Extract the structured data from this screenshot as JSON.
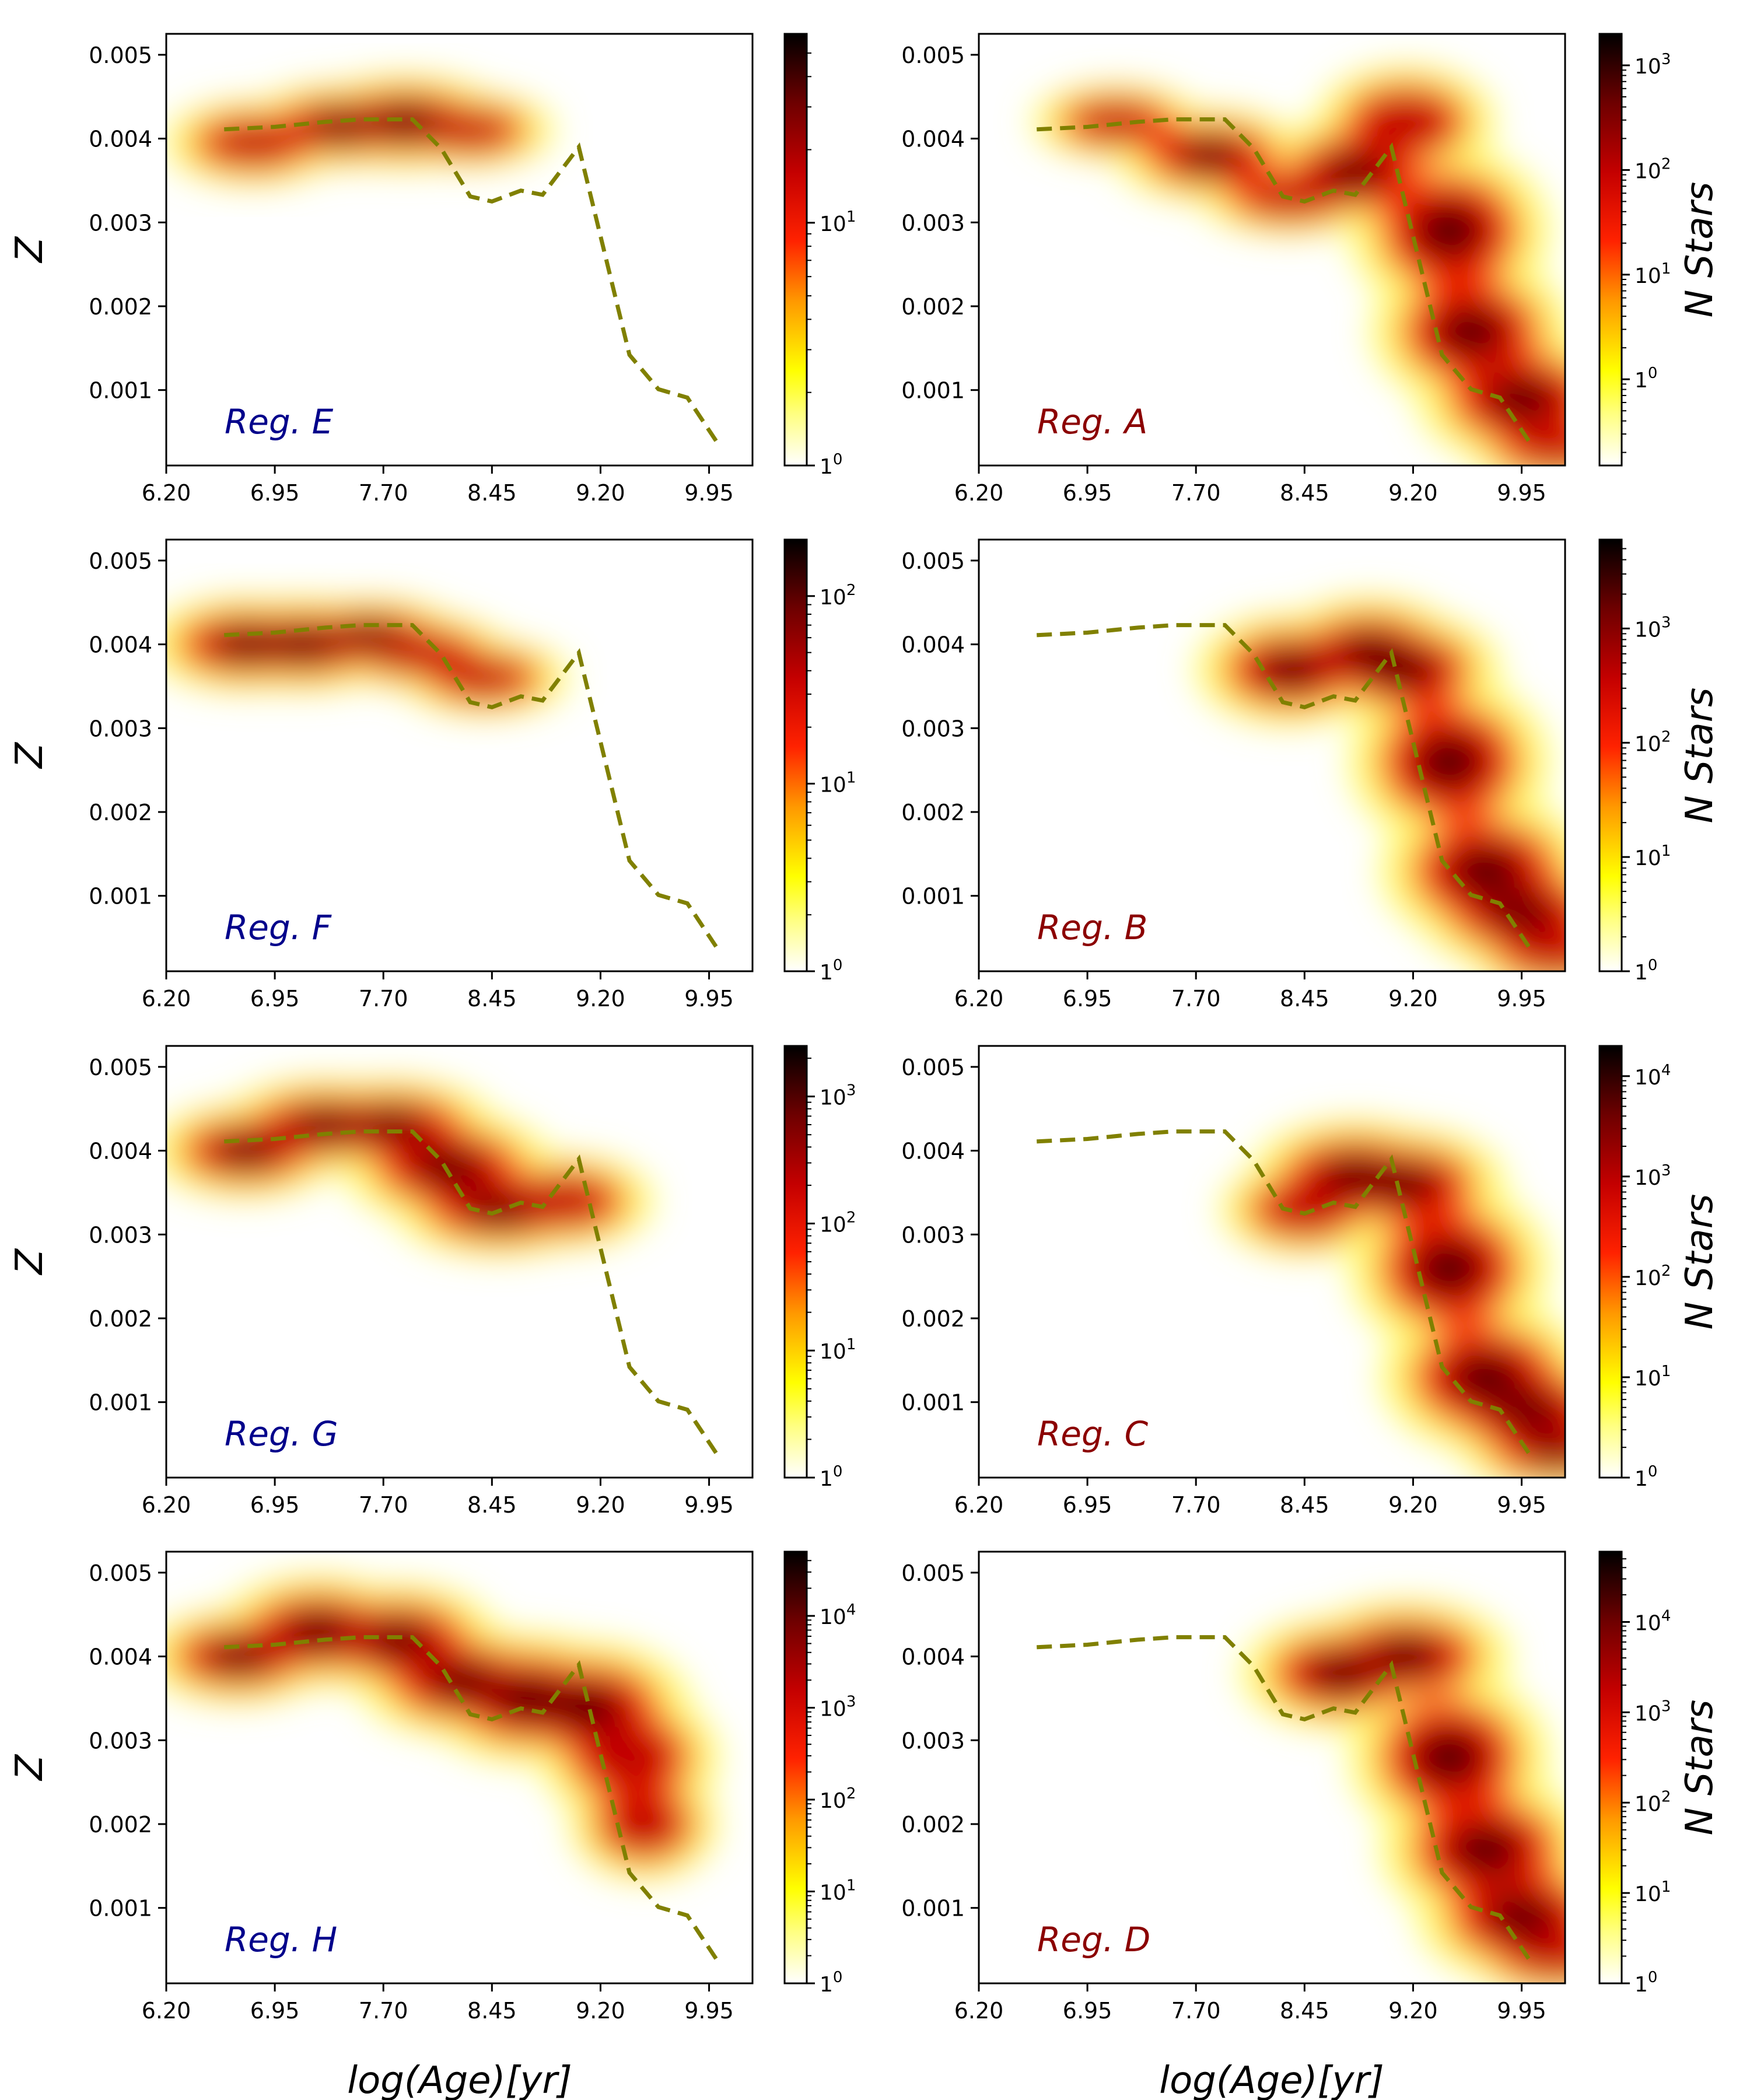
{
  "figure": {
    "common": {
      "x_ticks": [
        "6.20",
        "6.95",
        "7.70",
        "8.45",
        "9.20",
        "9.95"
      ],
      "y_ticks": [
        "0.001",
        "0.002",
        "0.003",
        "0.004",
        "0.005"
      ],
      "xlim": [
        6.2,
        10.25
      ],
      "ylim": [
        0.0001,
        0.00525
      ],
      "xlabel": "log(Age)[yr]",
      "ylabel": "Z",
      "colorbar_label": "N Stars",
      "line_color": "#808000",
      "label_color_left": "#00008b",
      "label_color_right": "#8b0000"
    }
  },
  "chart_data": [
    {
      "type": "heatmap",
      "region_label": "Reg. E",
      "colorbar_ticks": [
        {
          "label": "1",
          "exp": "0",
          "value": 1
        },
        {
          "label": "10",
          "exp": "1",
          "value": 10
        }
      ],
      "colorbar_range": [
        1,
        60
      ],
      "amr_line": {
        "x": [
          6.6,
          6.95,
          7.3,
          7.55,
          7.9,
          8.1,
          8.3,
          8.45,
          8.65,
          8.8,
          9.05,
          9.4,
          9.6,
          9.8,
          10.0
        ],
        "y": [
          0.00411,
          0.00414,
          0.0042,
          0.00423,
          0.00423,
          0.00388,
          0.00331,
          0.00325,
          0.00338,
          0.00333,
          0.0039,
          0.00142,
          0.00101,
          0.00091,
          0.00039
        ]
      }
    },
    {
      "type": "heatmap",
      "region_label": "Reg. A",
      "colorbar_ticks": [
        {
          "label": "1",
          "exp": "0",
          "value": 1
        },
        {
          "label": "10",
          "exp": "1",
          "value": 10
        },
        {
          "label": "10",
          "exp": "2",
          "value": 100
        },
        {
          "label": "10",
          "exp": "3",
          "value": 1000
        }
      ],
      "colorbar_range": [
        0.15,
        2000
      ],
      "amr_line": {
        "x": [
          6.6,
          6.95,
          7.3,
          7.55,
          7.9,
          8.1,
          8.3,
          8.45,
          8.65,
          8.8,
          9.05,
          9.4,
          9.6,
          9.8,
          10.0
        ],
        "y": [
          0.00411,
          0.00414,
          0.0042,
          0.00423,
          0.00423,
          0.00388,
          0.00331,
          0.00325,
          0.00338,
          0.00333,
          0.0039,
          0.00142,
          0.00101,
          0.00091,
          0.00039
        ]
      }
    },
    {
      "type": "heatmap",
      "region_label": "Reg. F",
      "colorbar_ticks": [
        {
          "label": "1",
          "exp": "0",
          "value": 1
        },
        {
          "label": "10",
          "exp": "1",
          "value": 10
        },
        {
          "label": "10",
          "exp": "2",
          "value": 100
        }
      ],
      "colorbar_range": [
        1,
        200
      ],
      "amr_line": {
        "x": [
          6.6,
          6.95,
          7.3,
          7.55,
          7.9,
          8.1,
          8.3,
          8.45,
          8.65,
          8.8,
          9.05,
          9.4,
          9.6,
          9.8,
          10.0
        ],
        "y": [
          0.00411,
          0.00414,
          0.0042,
          0.00423,
          0.00423,
          0.00388,
          0.00331,
          0.00325,
          0.00338,
          0.00333,
          0.0039,
          0.00142,
          0.00101,
          0.00091,
          0.00039
        ]
      }
    },
    {
      "type": "heatmap",
      "region_label": "Reg. B",
      "colorbar_ticks": [
        {
          "label": "1",
          "exp": "0",
          "value": 1
        },
        {
          "label": "10",
          "exp": "1",
          "value": 10
        },
        {
          "label": "10",
          "exp": "2",
          "value": 100
        },
        {
          "label": "10",
          "exp": "3",
          "value": 1000
        }
      ],
      "colorbar_range": [
        1,
        6000
      ],
      "amr_line": {
        "x": [
          6.6,
          6.95,
          7.3,
          7.55,
          7.9,
          8.1,
          8.3,
          8.45,
          8.65,
          8.8,
          9.05,
          9.4,
          9.6,
          9.8,
          10.0
        ],
        "y": [
          0.00411,
          0.00414,
          0.0042,
          0.00423,
          0.00423,
          0.00388,
          0.00331,
          0.00325,
          0.00338,
          0.00333,
          0.0039,
          0.00142,
          0.00101,
          0.00091,
          0.00039
        ]
      }
    },
    {
      "type": "heatmap",
      "region_label": "Reg. G",
      "colorbar_ticks": [
        {
          "label": "1",
          "exp": "0",
          "value": 1
        },
        {
          "label": "10",
          "exp": "1",
          "value": 10
        },
        {
          "label": "10",
          "exp": "2",
          "value": 100
        },
        {
          "label": "10",
          "exp": "3",
          "value": 1000
        }
      ],
      "colorbar_range": [
        1,
        2500
      ],
      "amr_line": {
        "x": [
          6.6,
          6.95,
          7.3,
          7.55,
          7.9,
          8.1,
          8.3,
          8.45,
          8.65,
          8.8,
          9.05,
          9.4,
          9.6,
          9.8,
          10.0
        ],
        "y": [
          0.00411,
          0.00414,
          0.0042,
          0.00423,
          0.00423,
          0.00388,
          0.00331,
          0.00325,
          0.00338,
          0.00333,
          0.0039,
          0.00142,
          0.00101,
          0.00091,
          0.00039
        ]
      }
    },
    {
      "type": "heatmap",
      "region_label": "Reg. C",
      "colorbar_ticks": [
        {
          "label": "1",
          "exp": "0",
          "value": 1
        },
        {
          "label": "10",
          "exp": "1",
          "value": 10
        },
        {
          "label": "10",
          "exp": "2",
          "value": 100
        },
        {
          "label": "10",
          "exp": "3",
          "value": 1000
        },
        {
          "label": "10",
          "exp": "4",
          "value": 10000
        }
      ],
      "colorbar_range": [
        1,
        20000
      ],
      "amr_line": {
        "x": [
          6.6,
          6.95,
          7.3,
          7.55,
          7.9,
          8.1,
          8.3,
          8.45,
          8.65,
          8.8,
          9.05,
          9.4,
          9.6,
          9.8,
          10.0
        ],
        "y": [
          0.00411,
          0.00414,
          0.0042,
          0.00423,
          0.00423,
          0.00388,
          0.00331,
          0.00325,
          0.00338,
          0.00333,
          0.0039,
          0.00142,
          0.00101,
          0.00091,
          0.00039
        ]
      }
    },
    {
      "type": "heatmap",
      "region_label": "Reg. H",
      "colorbar_ticks": [
        {
          "label": "1",
          "exp": "0",
          "value": 1
        },
        {
          "label": "10",
          "exp": "1",
          "value": 10
        },
        {
          "label": "10",
          "exp": "2",
          "value": 100
        },
        {
          "label": "10",
          "exp": "3",
          "value": 1000
        },
        {
          "label": "10",
          "exp": "4",
          "value": 10000
        }
      ],
      "colorbar_range": [
        1,
        50000
      ],
      "amr_line": {
        "x": [
          6.6,
          6.95,
          7.3,
          7.55,
          7.9,
          8.1,
          8.3,
          8.45,
          8.65,
          8.8,
          9.05,
          9.4,
          9.6,
          9.8,
          10.0
        ],
        "y": [
          0.00411,
          0.00414,
          0.0042,
          0.00423,
          0.00423,
          0.00388,
          0.00331,
          0.00325,
          0.00338,
          0.00333,
          0.0039,
          0.00142,
          0.00101,
          0.00091,
          0.00039
        ]
      }
    },
    {
      "type": "heatmap",
      "region_label": "Reg. D",
      "colorbar_ticks": [
        {
          "label": "1",
          "exp": "0",
          "value": 1
        },
        {
          "label": "10",
          "exp": "1",
          "value": 10
        },
        {
          "label": "10",
          "exp": "2",
          "value": 100
        },
        {
          "label": "10",
          "exp": "3",
          "value": 1000
        },
        {
          "label": "10",
          "exp": "4",
          "value": 10000
        }
      ],
      "colorbar_range": [
        1,
        60000
      ],
      "amr_line": {
        "x": [
          6.6,
          6.95,
          7.3,
          7.55,
          7.9,
          8.1,
          8.3,
          8.45,
          8.65,
          8.8,
          9.05,
          9.4,
          9.6,
          9.8,
          10.0
        ],
        "y": [
          0.00411,
          0.00414,
          0.0042,
          0.00423,
          0.00423,
          0.00388,
          0.00331,
          0.00325,
          0.00338,
          0.00333,
          0.0039,
          0.00142,
          0.00101,
          0.00091,
          0.00039
        ]
      }
    }
  ]
}
